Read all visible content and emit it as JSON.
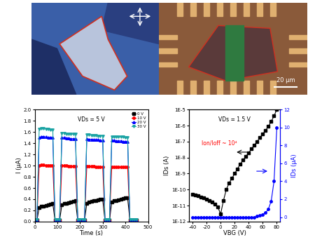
{
  "images": {
    "scale_bar": "20 μm"
  },
  "chart_data": [
    {
      "type": "line",
      "title": "VDs = 5 V",
      "x_label": "Time (s)",
      "y_label": "I (μA)",
      "x": [
        0,
        10,
        20,
        30,
        40,
        50,
        60,
        70,
        80,
        90,
        100,
        110,
        120,
        130,
        140,
        150,
        160,
        170,
        180,
        190,
        200,
        210,
        220,
        230,
        240,
        250,
        260,
        270,
        280,
        290,
        300,
        310,
        320,
        330,
        340,
        350,
        360,
        370,
        380,
        390,
        400,
        410,
        420,
        430,
        440,
        450
      ],
      "series": [
        {
          "name": "0 V",
          "color": "#000000",
          "marker": "square",
          "values": [
            0.02,
            0.02,
            0.25,
            0.27,
            0.28,
            0.29,
            0.3,
            0.31,
            0.32,
            0.02,
            0.02,
            0.02,
            0.3,
            0.32,
            0.33,
            0.34,
            0.35,
            0.36,
            0.37,
            0.02,
            0.02,
            0.02,
            0.02,
            0.33,
            0.35,
            0.36,
            0.37,
            0.38,
            0.39,
            0.4,
            0.4,
            0.02,
            0.02,
            0.02,
            0.35,
            0.37,
            0.38,
            0.39,
            0.4,
            0.41,
            0.42,
            0.42,
            0.02,
            0.02,
            0.02,
            0.02
          ]
        },
        {
          "name": "10 V",
          "color": "#ff0000",
          "marker": "circle",
          "values": [
            0.03,
            0.03,
            1.0,
            1.01,
            1.01,
            1.0,
            1.0,
            1.0,
            1.0,
            0.03,
            0.03,
            0.03,
            1.0,
            1.0,
            1.0,
            0.99,
            0.99,
            0.99,
            0.99,
            0.03,
            0.03,
            0.03,
            0.03,
            0.99,
            0.99,
            0.99,
            0.99,
            0.98,
            0.98,
            0.98,
            0.98,
            0.03,
            0.03,
            0.03,
            0.98,
            0.98,
            0.98,
            0.98,
            0.97,
            0.97,
            0.97,
            0.97,
            0.03,
            0.03,
            0.03,
            0.03
          ]
        },
        {
          "name": "20 V",
          "color": "#0000ff",
          "marker": "triangle_up",
          "values": [
            0.03,
            0.03,
            1.5,
            1.52,
            1.52,
            1.51,
            1.5,
            1.5,
            1.5,
            0.03,
            0.03,
            0.03,
            1.5,
            1.5,
            1.49,
            1.49,
            1.48,
            1.48,
            1.48,
            0.03,
            0.03,
            0.03,
            0.03,
            1.48,
            1.47,
            1.47,
            1.46,
            1.46,
            1.46,
            1.45,
            1.45,
            0.03,
            0.03,
            0.03,
            1.45,
            1.45,
            1.44,
            1.44,
            1.44,
            1.43,
            1.43,
            1.43,
            0.03,
            0.03,
            0.03,
            0.03
          ]
        },
        {
          "name": "30 V",
          "color": "#1aa3a3",
          "marker": "triangle_down",
          "values": [
            0.04,
            0.04,
            1.65,
            1.66,
            1.66,
            1.65,
            1.65,
            1.64,
            1.64,
            0.04,
            0.04,
            0.04,
            1.58,
            1.58,
            1.57,
            1.57,
            1.56,
            1.56,
            1.56,
            0.04,
            0.04,
            0.04,
            0.04,
            1.55,
            1.55,
            1.54,
            1.54,
            1.54,
            1.53,
            1.53,
            1.53,
            0.04,
            0.04,
            0.04,
            1.52,
            1.52,
            1.52,
            1.51,
            1.51,
            1.51,
            1.5,
            1.5,
            0.04,
            0.04,
            0.04,
            0.04
          ]
        }
      ],
      "xlim": [
        0,
        500
      ],
      "xticks": [
        0,
        100,
        200,
        300,
        400,
        500
      ],
      "ylim": [
        0.0,
        2.0
      ],
      "yticks": [
        0.0,
        0.2,
        0.4,
        0.6,
        0.8,
        1.0,
        1.2,
        1.4,
        1.6,
        1.8,
        2.0
      ],
      "legend": "upper right",
      "grid": false
    },
    {
      "type": "line",
      "title": "VDs = 1.5 V",
      "x_label": "VBG (V)",
      "y_label": "IDs (A)",
      "y2_label": "IDs (μA)",
      "annotations": [
        "Ion/Ioff ~ 10⁴"
      ],
      "x": [
        -40,
        -36,
        -32,
        -28,
        -24,
        -20,
        -16,
        -12,
        -8,
        -4,
        0,
        4,
        8,
        12,
        16,
        20,
        24,
        28,
        32,
        36,
        40,
        44,
        48,
        52,
        56,
        60,
        64,
        68,
        72,
        76,
        80
      ],
      "series": [
        {
          "color": "#000000",
          "marker": "square",
          "values": [
            5e-11,
            4.5e-11,
            4e-11,
            3.5e-11,
            3e-11,
            2.5e-11,
            2e-11,
            1.6e-11,
            1.2e-11,
            8e-12,
            3e-12,
            2e-11,
            1e-10,
            2.5e-10,
            5e-10,
            1e-09,
            2e-09,
            4e-09,
            7e-09,
            1.2e-08,
            2e-08,
            3.5e-08,
            6e-08,
            1e-07,
            1.8e-07,
            3e-07,
            5e-07,
            9e-07,
            1.8e-06,
            4e-06,
            1e-05
          ]
        },
        {
          "color": "#0000ff",
          "marker": "circle",
          "axis": "y2",
          "values": [
            0,
            0,
            0,
            0,
            0,
            0,
            0,
            0,
            0,
            0,
            0,
            0,
            0,
            0,
            0,
            0,
            0,
            0,
            0,
            0,
            0,
            0,
            0,
            0.1,
            0.18,
            0.3,
            0.5,
            0.9,
            1.8,
            4.0,
            10.0
          ]
        }
      ],
      "log": "y",
      "xlim": [
        -45,
        85
      ],
      "xticks": [
        -40,
        -20,
        0,
        20,
        40,
        60,
        80
      ],
      "ylim": [
        1e-12,
        1e-05
      ],
      "yticks": [
        {
          "value": 1e-12,
          "label": "1E-12"
        },
        {
          "value": 1e-11,
          "label": "1E-11"
        },
        {
          "value": 1e-10,
          "label": "1E-10"
        },
        {
          "value": 1e-09,
          "label": "1E-9"
        },
        {
          "value": 1e-08,
          "label": "1E-8"
        },
        {
          "value": 1e-07,
          "label": "1E-7"
        },
        {
          "value": 1e-06,
          "label": "1E-6"
        },
        {
          "value": 1e-05,
          "label": "1E-5"
        }
      ],
      "y2lim": [
        -0.5,
        12
      ],
      "y2ticks": [
        0,
        2,
        4,
        6,
        8,
        10,
        12
      ],
      "grid": false
    }
  ]
}
